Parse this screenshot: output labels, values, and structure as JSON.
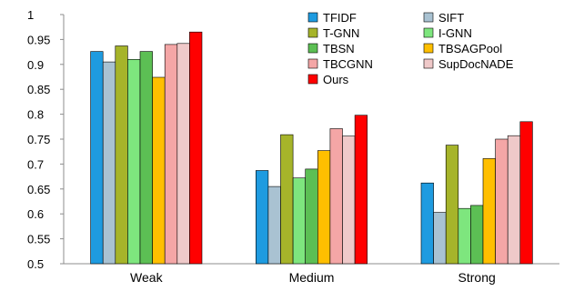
{
  "chart_data": {
    "type": "bar",
    "categories": [
      "Weak",
      "Medium",
      "Strong"
    ],
    "ylim": [
      0.5,
      1.0
    ],
    "y_ticks": [
      "0.5",
      "0.55",
      "0.6",
      "0.65",
      "0.7",
      "0.75",
      "0.8",
      "0.85",
      "0.9",
      "0.95",
      "1"
    ],
    "grid": false,
    "legend_position": "top-right",
    "series": [
      {
        "name": "TFIDF",
        "color": "#1e9be0",
        "values": [
          0.926,
          0.687,
          0.662
        ]
      },
      {
        "name": "SIFT",
        "color": "#a9c2d2",
        "values": [
          0.905,
          0.655,
          0.603
        ]
      },
      {
        "name": "T-GNN",
        "color": "#a6b42a",
        "values": [
          0.937,
          0.759,
          0.738
        ]
      },
      {
        "name": "I-GNN",
        "color": "#7ee67e",
        "values": [
          0.91,
          0.672,
          0.611
        ]
      },
      {
        "name": "TBSN",
        "color": "#5cbf54",
        "values": [
          0.926,
          0.69,
          0.617
        ]
      },
      {
        "name": "TBSAGPool",
        "color": "#ffbf00",
        "values": [
          0.874,
          0.727,
          0.711
        ]
      },
      {
        "name": "TBCGNN",
        "color": "#f4a6a6",
        "values": [
          0.94,
          0.771,
          0.75
        ]
      },
      {
        "name": "SupDocNADE",
        "color": "#efc9c9",
        "values": [
          0.942,
          0.756,
          0.757
        ]
      },
      {
        "name": "Ours",
        "color": "#ff0000",
        "values": [
          0.965,
          0.798,
          0.785
        ]
      }
    ]
  }
}
